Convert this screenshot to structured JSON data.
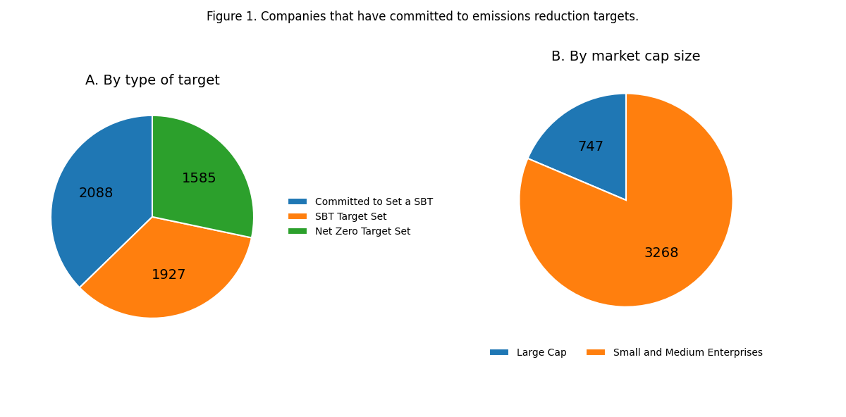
{
  "title": "Figure 1. Companies that have committed to emissions reduction targets.",
  "chart_data": [
    {
      "type": "pie",
      "title": "A. By type of target",
      "categories": [
        "Committed to Set a SBT",
        "SBT Target Set",
        "Net Zero Target Set"
      ],
      "values": [
        2088,
        1927,
        1585
      ],
      "data_labels": true,
      "legend": "right"
    },
    {
      "type": "pie",
      "title": "B. By market cap size",
      "categories": [
        "Large Cap",
        "Small and Medium Enterprises"
      ],
      "values": [
        747,
        3268
      ],
      "data_labels": true,
      "legend": "bottom"
    }
  ]
}
